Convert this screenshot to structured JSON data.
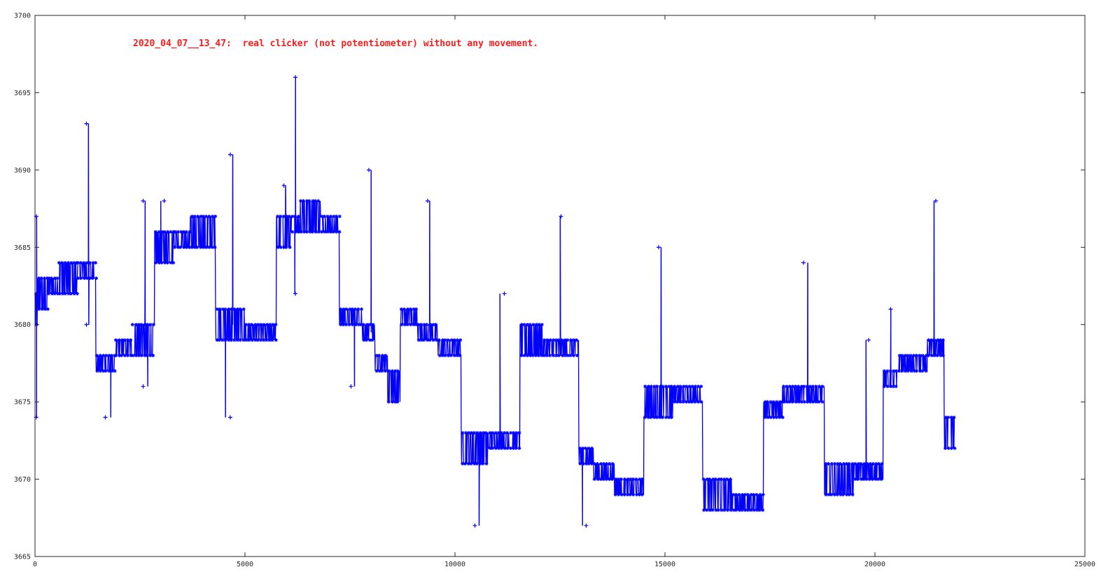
{
  "chart_data": {
    "type": "line",
    "title": "",
    "xlabel": "",
    "ylabel": "",
    "annotation": "2020_04_07__13_47:  real clicker (not potentiometer) without any movement.",
    "xlim": [
      0,
      25000
    ],
    "ylim": [
      3665,
      3700
    ],
    "x_ticks": [
      "0",
      "5000",
      "10000",
      "15000",
      "20000",
      "25000"
    ],
    "y_ticks": [
      "3665",
      "3670",
      "3675",
      "3680",
      "3685",
      "3690",
      "3695",
      "3700"
    ],
    "grid": false,
    "colors": {
      "primary": "#0000ff",
      "secondary": "#b0008a",
      "annotation": "#ff1a1a"
    },
    "series": [
      {
        "marker": "asterisk",
        "segments": [
          {
            "x0": 0,
            "x1": 60,
            "low": 3680,
            "high": 3682,
            "spike_max": 3687,
            "spike_min": 3674
          },
          {
            "x0": 60,
            "x1": 300,
            "low": 3681,
            "high": 3683
          },
          {
            "x0": 300,
            "x1": 550,
            "low": 3682,
            "high": 3683
          },
          {
            "x0": 550,
            "x1": 1000,
            "low": 3682,
            "high": 3684
          },
          {
            "x0": 1000,
            "x1": 1450,
            "low": 3683,
            "high": 3684,
            "spike_max": 3693,
            "spike_min": 3680
          },
          {
            "x0": 1450,
            "x1": 1900,
            "low": 3677,
            "high": 3678,
            "spike_min": 3674
          },
          {
            "x0": 1900,
            "x1": 2300,
            "low": 3678,
            "high": 3679
          },
          {
            "x0": 2300,
            "x1": 2850,
            "low": 3678,
            "high": 3680,
            "spike_max": 3688,
            "spike_min": 3676
          },
          {
            "x0": 2850,
            "x1": 3300,
            "low": 3684,
            "high": 3686,
            "spike_max": 3688
          },
          {
            "x0": 3300,
            "x1": 3700,
            "low": 3685,
            "high": 3686
          },
          {
            "x0": 3700,
            "x1": 4300,
            "low": 3685,
            "high": 3687
          },
          {
            "x0": 4300,
            "x1": 5000,
            "low": 3679,
            "high": 3681,
            "spike_max": 3691,
            "spike_min": 3674
          },
          {
            "x0": 5000,
            "x1": 5750,
            "low": 3679,
            "high": 3680
          },
          {
            "x0": 5750,
            "x1": 6100,
            "low": 3685,
            "high": 3687,
            "spike_max": 3689
          },
          {
            "x0": 6100,
            "x1": 6300,
            "low": 3686,
            "high": 3687,
            "spike_max": 3696,
            "spike_min": 3682
          },
          {
            "x0": 6300,
            "x1": 6800,
            "low": 3686,
            "high": 3688
          },
          {
            "x0": 6800,
            "x1": 7250,
            "low": 3686,
            "high": 3687
          },
          {
            "x0": 7250,
            "x1": 7800,
            "low": 3680,
            "high": 3681,
            "spike_min": 3676
          },
          {
            "x0": 7800,
            "x1": 8100,
            "low": 3679,
            "high": 3680,
            "spike_max": 3690
          },
          {
            "x0": 8100,
            "x1": 8400,
            "low": 3677,
            "high": 3678
          },
          {
            "x0": 8400,
            "x1": 8700,
            "low": 3675,
            "high": 3677
          },
          {
            "x0": 8700,
            "x1": 9100,
            "low": 3680,
            "high": 3681
          },
          {
            "x0": 9100,
            "x1": 9600,
            "low": 3679,
            "high": 3680,
            "spike_max": 3688
          },
          {
            "x0": 9600,
            "x1": 10150,
            "low": 3678,
            "high": 3679
          },
          {
            "x0": 10150,
            "x1": 10800,
            "low": 3671,
            "high": 3673,
            "spike_min": 3667
          },
          {
            "x0": 10800,
            "x1": 11550,
            "low": 3672,
            "high": 3673,
            "spike_max": 3682
          },
          {
            "x0": 11550,
            "x1": 12100,
            "low": 3678,
            "high": 3680
          },
          {
            "x0": 12100,
            "x1": 12950,
            "low": 3678,
            "high": 3679,
            "spike_max": 3687
          },
          {
            "x0": 12950,
            "x1": 13300,
            "low": 3671,
            "high": 3672,
            "spike_min": 3667
          },
          {
            "x0": 13300,
            "x1": 13800,
            "low": 3670,
            "high": 3671
          },
          {
            "x0": 13800,
            "x1": 14500,
            "low": 3669,
            "high": 3670
          },
          {
            "x0": 14500,
            "x1": 15200,
            "low": 3674,
            "high": 3676,
            "spike_max": 3685
          },
          {
            "x0": 15200,
            "x1": 15900,
            "low": 3675,
            "high": 3676
          },
          {
            "x0": 15900,
            "x1": 16600,
            "low": 3668,
            "high": 3670
          },
          {
            "x0": 16600,
            "x1": 17350,
            "low": 3668,
            "high": 3669
          },
          {
            "x0": 17350,
            "x1": 17800,
            "low": 3674,
            "high": 3675
          },
          {
            "x0": 17800,
            "x1": 18800,
            "low": 3675,
            "high": 3676,
            "spike_max": 3684
          },
          {
            "x0": 18800,
            "x1": 19500,
            "low": 3669,
            "high": 3671
          },
          {
            "x0": 19500,
            "x1": 20200,
            "low": 3670,
            "high": 3671,
            "spike_max": 3679
          },
          {
            "x0": 20200,
            "x1": 20550,
            "low": 3676,
            "high": 3677,
            "spike_max": 3681
          },
          {
            "x0": 20550,
            "x1": 21250,
            "low": 3677,
            "high": 3678
          },
          {
            "x0": 21250,
            "x1": 21650,
            "low": 3678,
            "high": 3679,
            "spike_max": 3688
          },
          {
            "x0": 21650,
            "x1": 21900,
            "low": 3672,
            "high": 3674
          }
        ]
      }
    ]
  }
}
